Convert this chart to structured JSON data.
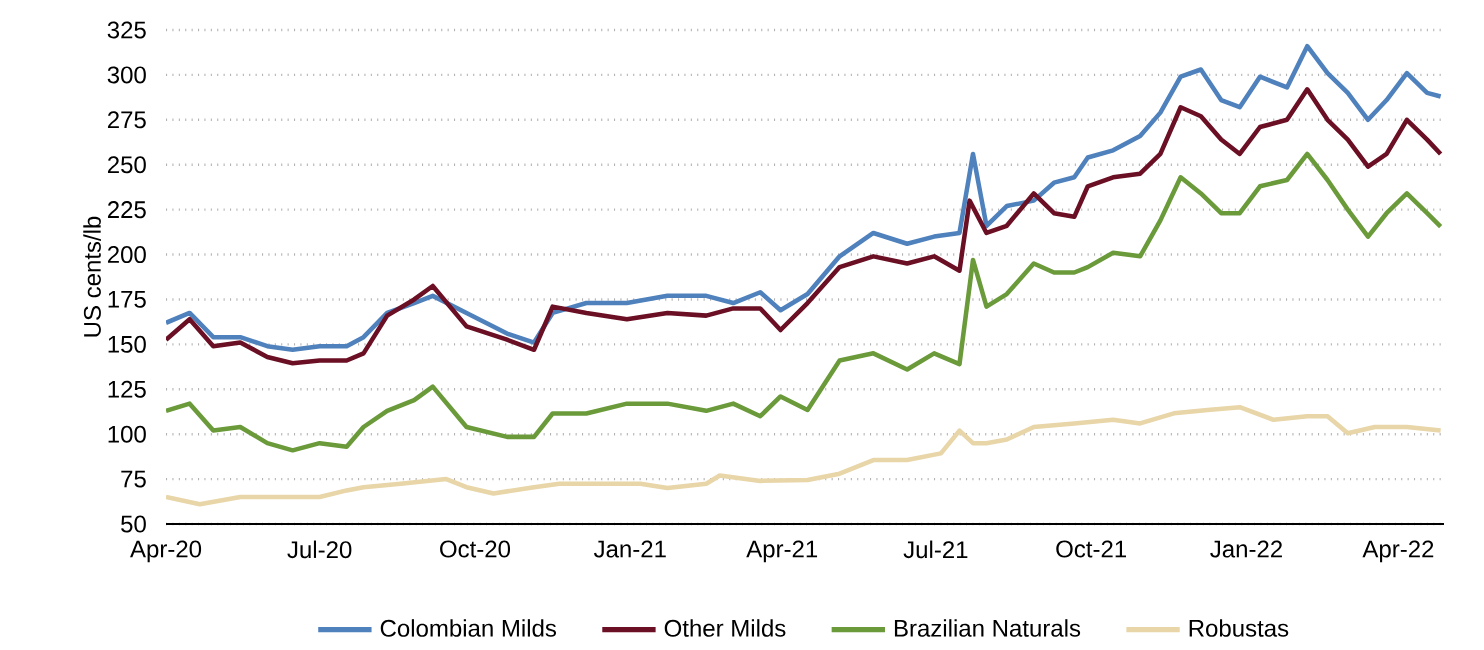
{
  "chart_data": {
    "type": "line",
    "ylabel": "US cents/lb",
    "xlim": [
      "2020-04-01",
      "2022-04-28"
    ],
    "ylim": [
      50,
      325
    ],
    "xticks": [
      {
        "value": "2020-04-01",
        "label": "Apr-20"
      },
      {
        "value": "2020-07-01",
        "label": "Jul-20"
      },
      {
        "value": "2020-10-01",
        "label": "Oct-20"
      },
      {
        "value": "2021-01-01",
        "label": "Jan-21"
      },
      {
        "value": "2021-04-01",
        "label": "Apr-21"
      },
      {
        "value": "2021-07-01",
        "label": "Jul-21"
      },
      {
        "value": "2021-10-01",
        "label": "Oct-21"
      },
      {
        "value": "2022-01-01",
        "label": "Jan-22"
      },
      {
        "value": "2022-04-01",
        "label": "Apr-22"
      }
    ],
    "yticks": [
      50,
      75,
      100,
      125,
      150,
      175,
      200,
      225,
      250,
      275,
      300,
      325
    ],
    "grid": "y",
    "legend": "bottom",
    "marker": "none",
    "line_style": "solid",
    "series": [
      {
        "name": "Colombian Milds",
        "color": "#4f81bd",
        "x": [
          "2020-04-01",
          "2020-04-15",
          "2020-04-29",
          "2020-05-15",
          "2020-05-31",
          "2020-06-15",
          "2020-07-01",
          "2020-07-17",
          "2020-07-27",
          "2020-08-10",
          "2020-08-26",
          "2020-09-06",
          "2020-09-26",
          "2020-10-20",
          "2020-11-05",
          "2020-11-16",
          "2020-12-06",
          "2020-12-30",
          "2021-01-23",
          "2021-02-15",
          "2021-03-03",
          "2021-03-19",
          "2021-03-31",
          "2021-04-16",
          "2021-05-05",
          "2021-05-25",
          "2021-06-14",
          "2021-06-30",
          "2021-07-15",
          "2021-07-23",
          "2021-07-31",
          "2021-08-12",
          "2021-08-28",
          "2021-09-09",
          "2021-09-21",
          "2021-09-29",
          "2021-10-14",
          "2021-10-30",
          "2021-11-11",
          "2021-11-23",
          "2021-12-05",
          "2021-12-17",
          "2021-12-28",
          "2022-01-09",
          "2022-01-25",
          "2022-02-06",
          "2022-02-18",
          "2022-03-02",
          "2022-03-14",
          "2022-03-25",
          "2022-04-06",
          "2022-04-18",
          "2022-04-26"
        ],
        "values": [
          162,
          167.5,
          154,
          154,
          149,
          147,
          149,
          149,
          154,
          167.5,
          173,
          177,
          167.5,
          156,
          151,
          167.5,
          173,
          173,
          177,
          177,
          173,
          179,
          169,
          178,
          199,
          212,
          206,
          210,
          212,
          256,
          216,
          227,
          230,
          240,
          243,
          254,
          258,
          266,
          279,
          299,
          303,
          286,
          282,
          299,
          293,
          316,
          301,
          290,
          275,
          286,
          301,
          290,
          288
        ]
      },
      {
        "name": "Other Milds",
        "color": "#6b0f24",
        "x": [
          "2020-04-01",
          "2020-04-15",
          "2020-04-29",
          "2020-05-15",
          "2020-05-31",
          "2020-06-15",
          "2020-07-01",
          "2020-07-17",
          "2020-07-27",
          "2020-08-10",
          "2020-08-26",
          "2020-09-06",
          "2020-09-26",
          "2020-10-20",
          "2020-11-05",
          "2020-11-16",
          "2020-12-06",
          "2020-12-30",
          "2021-01-23",
          "2021-02-15",
          "2021-03-03",
          "2021-03-19",
          "2021-03-31",
          "2021-04-16",
          "2021-05-05",
          "2021-05-25",
          "2021-06-14",
          "2021-06-30",
          "2021-07-15",
          "2021-07-21",
          "2021-07-31",
          "2021-08-12",
          "2021-08-28",
          "2021-09-09",
          "2021-09-21",
          "2021-09-29",
          "2021-10-14",
          "2021-10-30",
          "2021-11-11",
          "2021-11-23",
          "2021-12-05",
          "2021-12-17",
          "2021-12-28",
          "2022-01-09",
          "2022-01-25",
          "2022-02-06",
          "2022-02-18",
          "2022-03-02",
          "2022-03-14",
          "2022-03-25",
          "2022-04-06",
          "2022-04-18",
          "2022-04-26"
        ],
        "values": [
          152.6,
          164,
          149,
          151,
          143,
          139.5,
          141,
          141,
          145,
          166,
          175,
          182.5,
          160,
          152.6,
          147,
          171,
          167.5,
          164,
          167.5,
          166,
          170,
          170,
          158,
          173,
          193,
          199,
          195,
          199,
          191,
          230,
          212,
          216,
          234,
          223,
          221,
          238,
          243,
          245,
          256,
          282,
          277,
          264,
          256,
          271,
          275,
          292,
          275,
          264,
          249,
          256,
          275,
          264,
          256
        ]
      },
      {
        "name": "Brazilian Naturals",
        "color": "#6a9a3a",
        "x": [
          "2020-04-01",
          "2020-04-15",
          "2020-04-29",
          "2020-05-15",
          "2020-05-31",
          "2020-06-15",
          "2020-07-01",
          "2020-07-17",
          "2020-07-27",
          "2020-08-10",
          "2020-08-26",
          "2020-09-06",
          "2020-09-26",
          "2020-10-20",
          "2020-11-05",
          "2020-11-16",
          "2020-12-06",
          "2020-12-30",
          "2021-01-23",
          "2021-02-15",
          "2021-03-03",
          "2021-03-19",
          "2021-03-31",
          "2021-04-16",
          "2021-05-05",
          "2021-05-25",
          "2021-06-14",
          "2021-06-30",
          "2021-07-15",
          "2021-07-23",
          "2021-07-31",
          "2021-08-12",
          "2021-08-28",
          "2021-09-09",
          "2021-09-21",
          "2021-09-29",
          "2021-10-14",
          "2021-10-30",
          "2021-11-11",
          "2021-11-23",
          "2021-12-05",
          "2021-12-17",
          "2021-12-28",
          "2022-01-09",
          "2022-01-25",
          "2022-02-06",
          "2022-02-18",
          "2022-03-02",
          "2022-03-14",
          "2022-03-25",
          "2022-04-06",
          "2022-04-18",
          "2022-04-26"
        ],
        "values": [
          113,
          117,
          102,
          104,
          95,
          91,
          95,
          93,
          104,
          113,
          119,
          126.5,
          104,
          98.5,
          98.5,
          111.5,
          111.5,
          117,
          117,
          113,
          117,
          110,
          121,
          113.5,
          141,
          145,
          136,
          145,
          139,
          197,
          171,
          178,
          195,
          190,
          190,
          193,
          201,
          199,
          219,
          243,
          234,
          223,
          223,
          238,
          241.5,
          256,
          241.5,
          225,
          210,
          223,
          234,
          223,
          215.5
        ]
      },
      {
        "name": "Robustas",
        "color": "#e8d5a8",
        "x": [
          "2020-04-01",
          "2020-04-21",
          "2020-05-15",
          "2020-05-31",
          "2020-06-15",
          "2020-07-01",
          "2020-07-17",
          "2020-07-27",
          "2020-08-18",
          "2020-09-14",
          "2020-09-26",
          "2020-10-12",
          "2020-11-05",
          "2020-11-20",
          "2020-12-14",
          "2021-01-07",
          "2021-01-23",
          "2021-02-15",
          "2021-02-23",
          "2021-03-19",
          "2021-04-16",
          "2021-05-05",
          "2021-05-25",
          "2021-06-14",
          "2021-07-04",
          "2021-07-15",
          "2021-07-23",
          "2021-07-31",
          "2021-08-12",
          "2021-08-28",
          "2021-09-21",
          "2021-10-14",
          "2021-10-30",
          "2021-11-19",
          "2021-12-09",
          "2021-12-28",
          "2022-01-17",
          "2022-02-06",
          "2022-02-18",
          "2022-03-02",
          "2022-03-18",
          "2022-04-06",
          "2022-04-26"
        ],
        "values": [
          65,
          61,
          65,
          65,
          65,
          65,
          68.7,
          70.5,
          72.4,
          75,
          70.5,
          67,
          70.5,
          72.4,
          72.4,
          72.4,
          70,
          72.4,
          77,
          74,
          74.5,
          78,
          85.6,
          85.6,
          89.3,
          102,
          95,
          95,
          97,
          104,
          106,
          108,
          106,
          111.6,
          113.5,
          115,
          108,
          110,
          110,
          100.5,
          104,
          104,
          102
        ]
      }
    ]
  }
}
